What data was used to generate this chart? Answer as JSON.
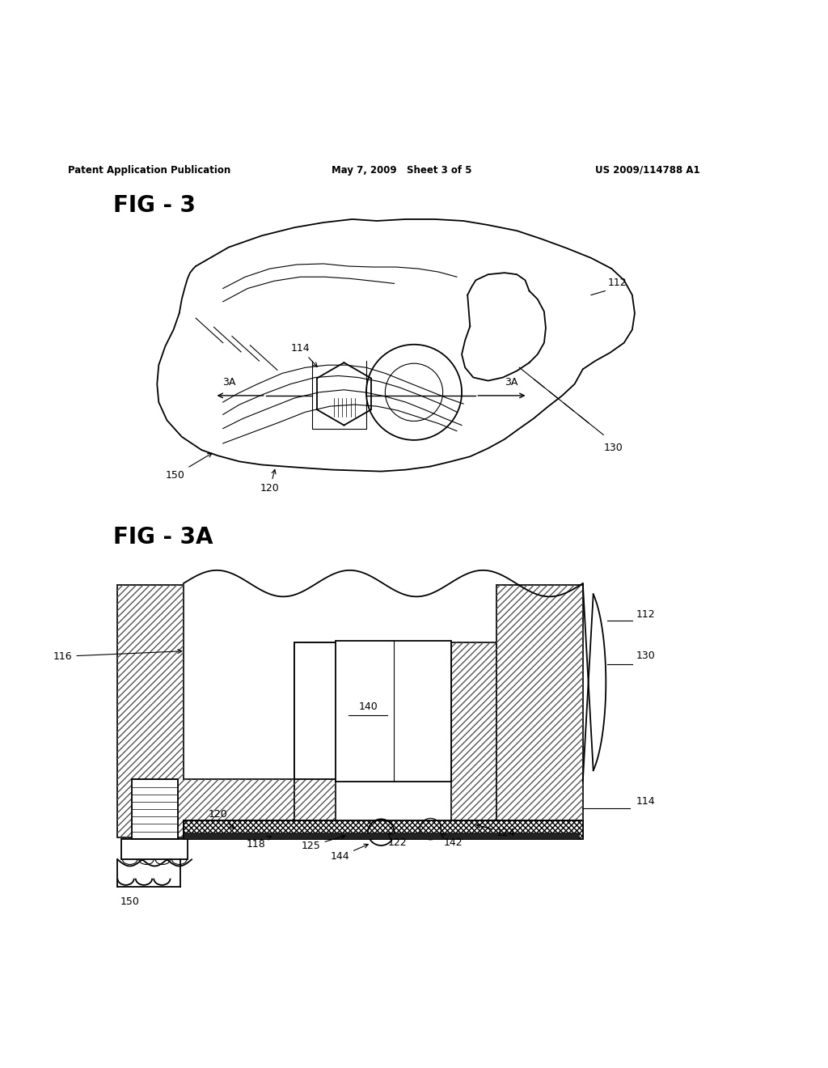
{
  "background_color": "#ffffff",
  "page_width": 10.24,
  "page_height": 13.2,
  "header_text_left": "Patent Application Publication",
  "header_text_mid": "May 7, 2009   Sheet 3 of 5",
  "header_text_right": "US 2009/114788 A1",
  "fig3_label": "FIG - 3",
  "fig3a_label": "FIG - 3A"
}
